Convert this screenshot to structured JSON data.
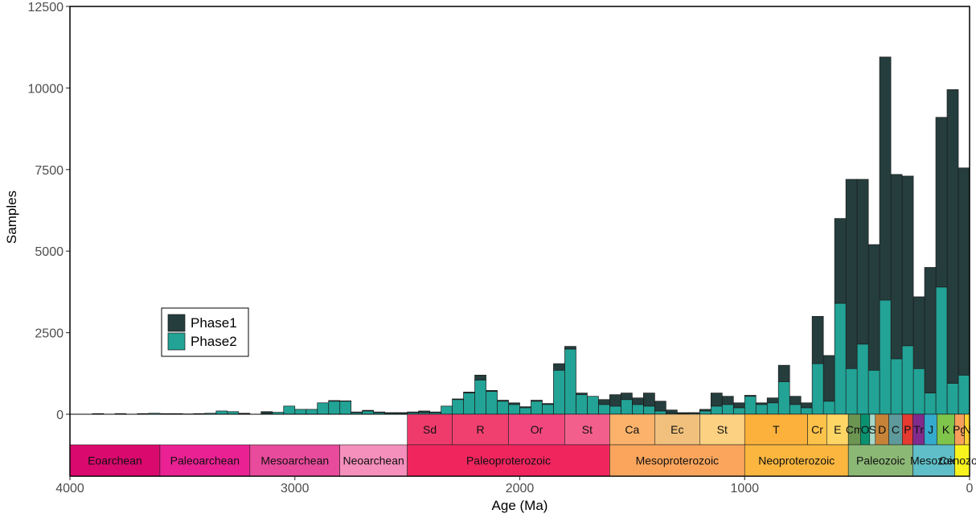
{
  "chart_data": {
    "type": "bar",
    "stacked": true,
    "xlabel": "Age (Ma)",
    "ylabel": "Samples",
    "x_reversed": true,
    "xlim": [
      4000,
      0
    ],
    "ylim": [
      0,
      12500
    ],
    "x_ticks": [
      4000,
      3000,
      2000,
      1000,
      0
    ],
    "y_ticks": [
      0,
      2500,
      5000,
      7500,
      10000,
      12500
    ],
    "bin_width": 50,
    "legend": {
      "position": "left-middle",
      "entries": [
        "Phase1",
        "Phase2"
      ]
    },
    "colors": {
      "Phase1": "#253d3d",
      "Phase2": "#22a396"
    },
    "series": [
      {
        "name": "Phase2",
        "bins_from_age_0": [
          1200,
          950,
          3900,
          650,
          1400,
          2100,
          1700,
          3500,
          1350,
          2150,
          1400,
          3400,
          400,
          1550,
          200,
          300,
          1000,
          350,
          300,
          550,
          200,
          300,
          250,
          100,
          30,
          20,
          30,
          100,
          250,
          300,
          450,
          250,
          300,
          550,
          600,
          2000,
          1350,
          300,
          400,
          200,
          300,
          400,
          700,
          1050,
          650,
          450,
          250,
          50,
          50,
          50,
          30,
          30,
          50,
          100,
          50,
          400,
          400,
          350,
          150,
          150,
          250,
          60,
          30,
          0,
          20,
          80,
          100,
          30,
          20,
          10,
          20,
          20,
          30,
          20,
          0,
          20,
          0,
          20,
          0,
          0
        ]
      },
      {
        "name": "Phase1",
        "bins_from_age_0": [
          6350,
          9000,
          5200,
          3850,
          2200,
          5200,
          5650,
          7450,
          3850,
          5050,
          5800,
          2600,
          1400,
          1450,
          150,
          250,
          500,
          150,
          50,
          30,
          150,
          250,
          400,
          50,
          20,
          30,
          100,
          300,
          400,
          200,
          200,
          350,
          150,
          0,
          50,
          80,
          200,
          30,
          30,
          30,
          50,
          30,
          30,
          150,
          30,
          20,
          0,
          20,
          50,
          20,
          20,
          20,
          20,
          20,
          20,
          10,
          20,
          0,
          0,
          0,
          0,
          0,
          50,
          0,
          10,
          0,
          0,
          0,
          0,
          0,
          0,
          0,
          0,
          0,
          0,
          0,
          0,
          0,
          0,
          0
        ]
      }
    ],
    "timescale": {
      "periods": [
        {
          "label": "Sd",
          "start": 2500,
          "end": 2300,
          "color": "#ef3b6c"
        },
        {
          "label": "R",
          "start": 2300,
          "end": 2050,
          "color": "#ef4070"
        },
        {
          "label": "Or",
          "start": 2050,
          "end": 1800,
          "color": "#f2467e"
        },
        {
          "label": "St",
          "start": 1800,
          "end": 1600,
          "color": "#f35f8d"
        },
        {
          "label": "Ca",
          "start": 1600,
          "end": 1400,
          "color": "#fcb26a"
        },
        {
          "label": "Ec",
          "start": 1400,
          "end": 1200,
          "color": "#f0c07c"
        },
        {
          "label": "St",
          "start": 1200,
          "end": 1000,
          "color": "#fcd182"
        },
        {
          "label": "T",
          "start": 1000,
          "end": 720,
          "color": "#fbb13c"
        },
        {
          "label": "Cr",
          "start": 720,
          "end": 635,
          "color": "#fdc24a"
        },
        {
          "label": "E",
          "start": 635,
          "end": 539,
          "color": "#fed665"
        },
        {
          "label": "Cm",
          "start": 539,
          "end": 485,
          "color": "#6c9552"
        },
        {
          "label": "O",
          "start": 485,
          "end": 444,
          "color": "#0a9270"
        },
        {
          "label": "S",
          "start": 444,
          "end": 419,
          "color": "#a6d8c7"
        },
        {
          "label": "D",
          "start": 419,
          "end": 359,
          "color": "#c68338"
        },
        {
          "label": "C",
          "start": 359,
          "end": 299,
          "color": "#5e9a9b"
        },
        {
          "label": "P",
          "start": 299,
          "end": 252,
          "color": "#e53a30"
        },
        {
          "label": "Tr",
          "start": 252,
          "end": 201,
          "color": "#822b8e"
        },
        {
          "label": "J",
          "start": 201,
          "end": 145,
          "color": "#34aacd"
        },
        {
          "label": "K",
          "start": 145,
          "end": 66,
          "color": "#7fc44b"
        },
        {
          "label": "Pg",
          "start": 66,
          "end": 23,
          "color": "#f7a05b"
        },
        {
          "label": "N",
          "start": 23,
          "end": 0,
          "color": "#fed22f"
        }
      ],
      "eras": [
        {
          "label": "Eoarchean",
          "start": 4000,
          "end": 3600,
          "color": "#d9096d"
        },
        {
          "label": "Paleoarchean",
          "start": 3600,
          "end": 3200,
          "color": "#ea2193"
        },
        {
          "label": "Mesoarchean",
          "start": 3200,
          "end": 2800,
          "color": "#e84b9b"
        },
        {
          "label": "Neoarchean",
          "start": 2800,
          "end": 2500,
          "color": "#f58fbb"
        },
        {
          "label": "Paleoproterozoic",
          "start": 2500,
          "end": 1600,
          "color": "#f0255e"
        },
        {
          "label": "Mesoproterozoic",
          "start": 1600,
          "end": 1000,
          "color": "#fba55c"
        },
        {
          "label": "Neoproterozoic",
          "start": 1000,
          "end": 539,
          "color": "#fab63e"
        },
        {
          "label": "Paleozoic",
          "start": 539,
          "end": 252,
          "color": "#8cb876"
        },
        {
          "label": "Mesozoic",
          "start": 252,
          "end": 66,
          "color": "#5fbec7"
        },
        {
          "label": "Cenozoic",
          "start": 66,
          "end": 0,
          "color": "#f8f31f"
        }
      ]
    }
  }
}
